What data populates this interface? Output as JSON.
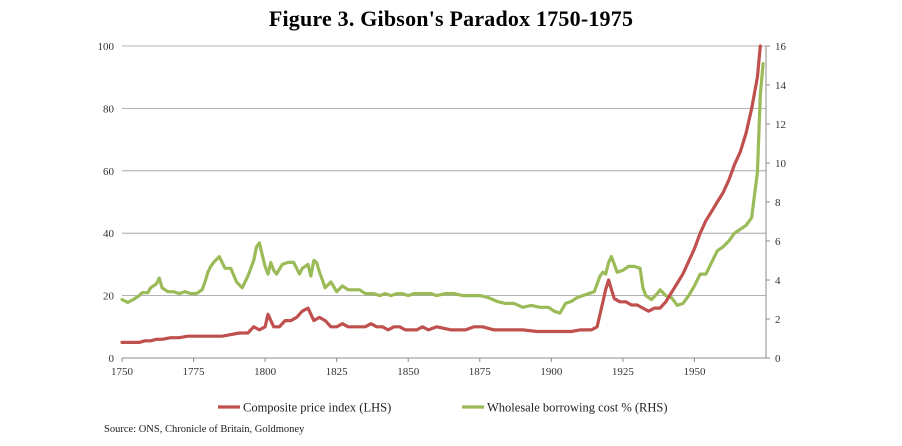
{
  "chart_data": {
    "type": "line",
    "title": "Figure 3. Gibson's Paradox 1750-1975",
    "xlabel": "",
    "ylabel": "",
    "xlim": [
      1750,
      1975
    ],
    "ylim_left": [
      0,
      100
    ],
    "ylim_right": [
      0,
      16
    ],
    "x_ticks": [
      "1750",
      "1775",
      "1800",
      "1825",
      "1850",
      "1875",
      "1900",
      "1925",
      "1950"
    ],
    "y_ticks_left": [
      "0",
      "20",
      "40",
      "60",
      "80",
      "100"
    ],
    "y_ticks_right": [
      "0",
      "2",
      "4",
      "6",
      "8",
      "10",
      "12",
      "14",
      "16"
    ],
    "grid": "horizontal",
    "legend_position": "bottom",
    "series": [
      {
        "name": "Composite price index (LHS)",
        "axis": "left",
        "color": "#c0504d",
        "x": [
          1750,
          1753,
          1756,
          1758,
          1760,
          1762,
          1764,
          1767,
          1770,
          1773,
          1776,
          1779,
          1782,
          1785,
          1788,
          1791,
          1794,
          1796,
          1798,
          1800,
          1801,
          1803,
          1805,
          1807,
          1809,
          1811,
          1813,
          1815,
          1817,
          1819,
          1821,
          1823,
          1825,
          1827,
          1829,
          1831,
          1833,
          1835,
          1837,
          1839,
          1841,
          1843,
          1845,
          1847,
          1849,
          1851,
          1853,
          1855,
          1857,
          1860,
          1865,
          1870,
          1873,
          1876,
          1880,
          1885,
          1890,
          1895,
          1899,
          1903,
          1907,
          1910,
          1912,
          1914,
          1916,
          1918,
          1919,
          1920,
          1921,
          1922,
          1924,
          1926,
          1928,
          1930,
          1932,
          1934,
          1936,
          1938,
          1940,
          1942,
          1944,
          1946,
          1948,
          1950,
          1952,
          1954,
          1956,
          1958,
          1960,
          1962,
          1964,
          1966,
          1968,
          1970,
          1972,
          1973
        ],
        "values": [
          5,
          5,
          5,
          5.5,
          5.5,
          6,
          6,
          6.5,
          6.5,
          7,
          7,
          7,
          7,
          7,
          7.5,
          8,
          8,
          10,
          9,
          10,
          14,
          10,
          10,
          12,
          12,
          13,
          15,
          16,
          12,
          13,
          12,
          10,
          10,
          11,
          10,
          10,
          10,
          10,
          11,
          10,
          10,
          9,
          10,
          10,
          9,
          9,
          9,
          10,
          9,
          10,
          9,
          9,
          10,
          10,
          9,
          9,
          9,
          8.5,
          8.5,
          8.5,
          8.5,
          9,
          9,
          9,
          10,
          18,
          22,
          25,
          22,
          19,
          18,
          18,
          17,
          17,
          16,
          15,
          16,
          16,
          18,
          21,
          24,
          27,
          31,
          35,
          40,
          44,
          47,
          50,
          53,
          57,
          62,
          66,
          72,
          80,
          90,
          100
        ]
      },
      {
        "name": "Wholesale borrowing cost % (RHS)",
        "axis": "right",
        "color": "#9bbb59",
        "x": [
          1750,
          1752,
          1754,
          1756,
          1757,
          1759,
          1760,
          1762,
          1763,
          1764,
          1766,
          1768,
          1770,
          1772,
          1774,
          1776,
          1778,
          1779,
          1780,
          1781,
          1782,
          1784,
          1786,
          1788,
          1790,
          1792,
          1794,
          1796,
          1797,
          1798,
          1799,
          1800,
          1801,
          1802,
          1803,
          1804,
          1806,
          1808,
          1810,
          1812,
          1813,
          1815,
          1816,
          1817,
          1818,
          1819,
          1820,
          1821,
          1823,
          1825,
          1827,
          1829,
          1831,
          1833,
          1835,
          1838,
          1840,
          1842,
          1844,
          1846,
          1848,
          1850,
          1852,
          1855,
          1858,
          1860,
          1863,
          1866,
          1869,
          1872,
          1875,
          1878,
          1881,
          1884,
          1887,
          1890,
          1893,
          1896,
          1899,
          1901,
          1903,
          1905,
          1907,
          1909,
          1911,
          1913,
          1915,
          1917,
          1918,
          1919,
          1920,
          1921,
          1923,
          1925,
          1927,
          1929,
          1931,
          1932,
          1933,
          1935,
          1937,
          1938,
          1940,
          1942,
          1944,
          1946,
          1948,
          1950,
          1952,
          1954,
          1956,
          1958,
          1960,
          1962,
          1964,
          1966,
          1968,
          1970,
          1971,
          1972,
          1973,
          1974
        ],
        "values": [
          3.0,
          2.85,
          3.0,
          3.2,
          3.35,
          3.35,
          3.6,
          3.8,
          4.1,
          3.6,
          3.4,
          3.4,
          3.3,
          3.4,
          3.3,
          3.3,
          3.5,
          3.9,
          4.4,
          4.7,
          4.9,
          5.2,
          4.6,
          4.6,
          3.9,
          3.6,
          4.2,
          5.0,
          5.7,
          5.9,
          5.3,
          4.7,
          4.3,
          4.9,
          4.5,
          4.3,
          4.8,
          4.9,
          4.9,
          4.3,
          4.6,
          4.8,
          4.2,
          5.0,
          4.9,
          4.4,
          4.0,
          3.6,
          3.9,
          3.4,
          3.7,
          3.5,
          3.5,
          3.5,
          3.3,
          3.3,
          3.2,
          3.3,
          3.2,
          3.3,
          3.3,
          3.2,
          3.3,
          3.3,
          3.3,
          3.2,
          3.3,
          3.3,
          3.2,
          3.2,
          3.2,
          3.1,
          2.9,
          2.8,
          2.8,
          2.6,
          2.7,
          2.6,
          2.6,
          2.4,
          2.3,
          2.8,
          2.9,
          3.1,
          3.2,
          3.3,
          3.4,
          4.2,
          4.4,
          4.3,
          4.9,
          5.2,
          4.4,
          4.5,
          4.7,
          4.7,
          4.6,
          3.6,
          3.2,
          3.0,
          3.3,
          3.5,
          3.2,
          3.1,
          2.7,
          2.8,
          3.2,
          3.7,
          4.3,
          4.3,
          4.9,
          5.5,
          5.7,
          6.0,
          6.4,
          6.6,
          6.8,
          7.2,
          8.4,
          9.5,
          13.5,
          15.1
        ]
      }
    ],
    "source": "Source: ONS, Chronicle of Britain, Goldmoney"
  }
}
